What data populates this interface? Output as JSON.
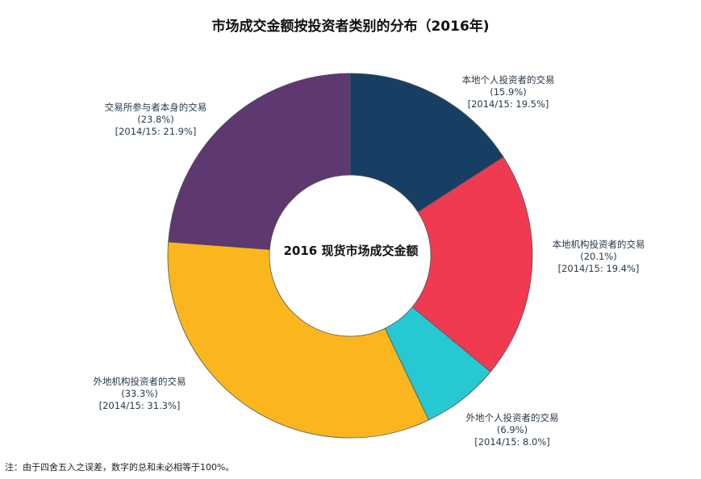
{
  "chart_data": {
    "type": "pie",
    "title": "市场成交金额按投资者类别的分布（2016年)",
    "center_label": "2016 现货市场成交金额",
    "slices": [
      {
        "label": "本地个人投资者的交易",
        "value": 15.9,
        "value_text": "(15.9%)",
        "prior_text": "[2014/15: 19.5%]",
        "prior_value": 19.5,
        "color": "#173f63"
      },
      {
        "label": "本地机构投资者的交易",
        "value": 20.1,
        "value_text": "(20.1%)",
        "prior_text": "[2014/15: 19.4%]",
        "prior_value": 19.4,
        "color": "#ef3a52"
      },
      {
        "label": "外地个人投资者的交易",
        "value": 6.9,
        "value_text": "(6.9%)",
        "prior_text": "[2014/15: 8.0%]",
        "prior_value": 8.0,
        "color": "#26c9d2"
      },
      {
        "label": "外地机构投资者的交易",
        "value": 33.3,
        "value_text": "(33.3%)",
        "prior_text": "[2014/15: 31.3%]",
        "prior_value": 31.3,
        "color": "#fbb61d"
      },
      {
        "label": "交易所参与者本身的交易",
        "value": 23.8,
        "value_text": "(23.8%)",
        "prior_text": "[2014/15: 21.9%]",
        "prior_value": 21.9,
        "color": "#5e3870"
      }
    ]
  },
  "footnote": "注：由于四舍五入之误差，数字的总和未必相等于100%。"
}
